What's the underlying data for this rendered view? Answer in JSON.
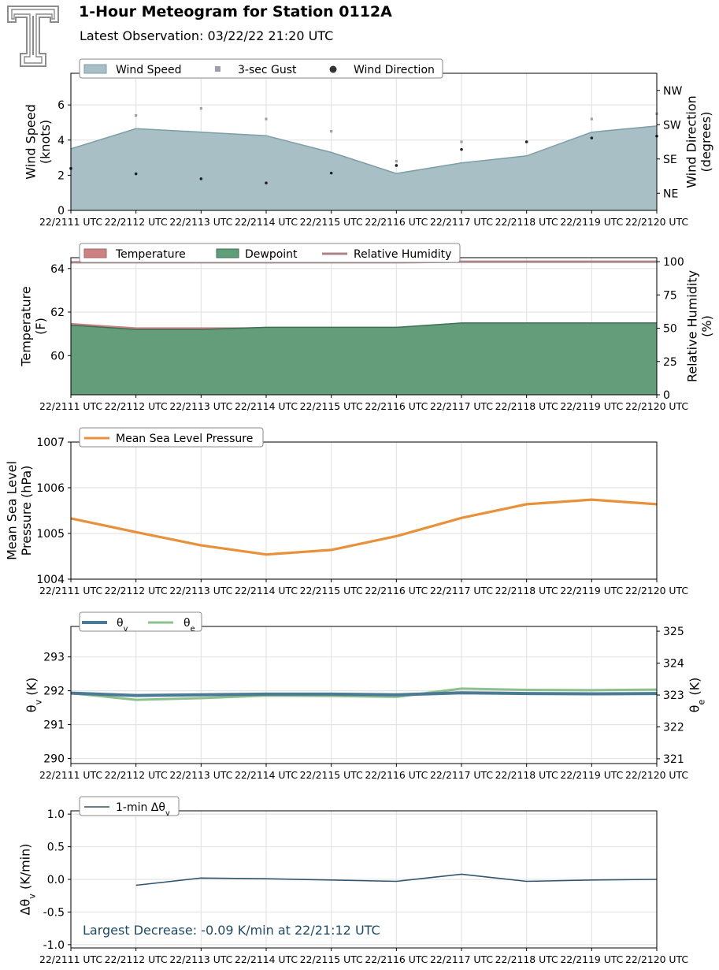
{
  "header": {
    "title": "1-Hour Meteogram for Station 0112A",
    "subtitle": "Latest Observation: 03/22/22 21:20 UTC"
  },
  "colors": {
    "wind_fill": "#a7bfc5",
    "wind_line": "#7d9ea6",
    "gust": "#9e9eb0",
    "direction": "#222222",
    "temperature": "#cd8282",
    "dewpoint": "#5e9e78",
    "dewpoint_line": "#3f6e53",
    "rh": "#a98589",
    "pressure": "#e8913a",
    "theta_v": "#4a7a96",
    "theta_e": "#8cc08c",
    "dtheta": "#2f566e",
    "annotation": "#1e4a6a"
  },
  "chart_data": [
    {
      "type": "area",
      "id": "wind",
      "x": [
        "22/2111 UTC",
        "22/2112 UTC",
        "22/2113 UTC",
        "22/2114 UTC",
        "22/2115 UTC",
        "22/2116 UTC",
        "22/2117 UTC",
        "22/2118 UTC",
        "22/2119 UTC",
        "22/2120 UTC"
      ],
      "ylabel": "Wind Speed\n(knots)",
      "ylabel2": "Wind Direction\n(degrees)",
      "ylim": [
        0,
        7.8
      ],
      "yticks": [
        0,
        2,
        4,
        6
      ],
      "ylim2": [
        0,
        360
      ],
      "y2ticks": [
        45,
        135,
        225,
        315
      ],
      "y2ticklabels": [
        "NE",
        "SE",
        "SW",
        "NW"
      ],
      "legend": [
        "Wind Speed",
        "3-sec Gust",
        "Wind Direction"
      ],
      "series": [
        {
          "name": "Wind Speed",
          "values": [
            3.5,
            4.65,
            4.45,
            4.25,
            3.3,
            2.1,
            2.7,
            3.1,
            4.45,
            4.8
          ]
        },
        {
          "name": "3-sec Gust",
          "values": [
            2.4,
            5.4,
            5.8,
            5.2,
            4.5,
            2.8,
            3.9,
            3.9,
            5.2,
            5.5
          ]
        },
        {
          "name": "Wind Direction",
          "values": [
            110,
            96,
            83,
            72,
            98,
            118,
            160,
            180,
            190,
            195
          ]
        }
      ]
    },
    {
      "type": "area",
      "id": "temp",
      "x": [
        "22/2111 UTC",
        "22/2112 UTC",
        "22/2113 UTC",
        "22/2114 UTC",
        "22/2115 UTC",
        "22/2116 UTC",
        "22/2117 UTC",
        "22/2118 UTC",
        "22/2119 UTC",
        "22/2120 UTC"
      ],
      "ylabel": "Temperature\n(F)",
      "ylabel2": "Relative Humidity\n(%)",
      "ylim": [
        58.2,
        64.5
      ],
      "yticks": [
        60,
        62,
        64
      ],
      "ylim2": [
        0,
        103
      ],
      "y2ticks": [
        0,
        25,
        50,
        75,
        100
      ],
      "legend": [
        "Temperature",
        "Dewpoint",
        "Relative Humidity"
      ],
      "series": [
        {
          "name": "Temperature",
          "values": [
            61.5,
            61.3,
            61.3,
            61.3,
            61.3,
            61.3,
            61.5,
            61.5,
            61.5,
            61.5
          ]
        },
        {
          "name": "Dewpoint",
          "values": [
            61.4,
            61.2,
            61.2,
            61.3,
            61.3,
            61.3,
            61.5,
            61.5,
            61.5,
            61.5
          ]
        },
        {
          "name": "Relative Humidity",
          "values": [
            99.5,
            99.5,
            99.5,
            99.5,
            99.5,
            99.5,
            100,
            100,
            100,
            100
          ]
        }
      ]
    },
    {
      "type": "line",
      "id": "pressure",
      "x": [
        "22/2111 UTC",
        "22/2112 UTC",
        "22/2113 UTC",
        "22/2114 UTC",
        "22/2115 UTC",
        "22/2116 UTC",
        "22/2117 UTC",
        "22/2118 UTC",
        "22/2119 UTC",
        "22/2120 UTC"
      ],
      "ylabel": "Mean Sea Level\nPressure (hPa)",
      "ylim": [
        1004,
        1007
      ],
      "yticks": [
        1004,
        1005,
        1006,
        1007
      ],
      "legend": [
        "Mean Sea Level Pressure"
      ],
      "series": [
        {
          "name": "Mean Sea Level Pressure",
          "values": [
            1005.33,
            1005.03,
            1004.74,
            1004.54,
            1004.64,
            1004.94,
            1005.34,
            1005.64,
            1005.74,
            1005.64
          ]
        }
      ]
    },
    {
      "type": "line",
      "id": "theta",
      "x": [
        "22/2111 UTC",
        "22/2112 UTC",
        "22/2113 UTC",
        "22/2114 UTC",
        "22/2115 UTC",
        "22/2116 UTC",
        "22/2117 UTC",
        "22/2118 UTC",
        "22/2119 UTC",
        "22/2120 UTC"
      ],
      "ylabel": "θv (K)",
      "ylabel2": "θe (K)",
      "ylim": [
        289.85,
        293.9
      ],
      "yticks": [
        290,
        291,
        292,
        293
      ],
      "ylim2": [
        320.85,
        325.15
      ],
      "y2ticks": [
        321,
        322,
        323,
        324,
        325
      ],
      "legend": [
        "θv",
        "θe"
      ],
      "series": [
        {
          "name": "θv",
          "values": [
            291.93,
            291.86,
            291.88,
            291.9,
            291.9,
            291.88,
            291.94,
            291.92,
            291.91,
            291.92
          ]
        },
        {
          "name": "θe",
          "values": [
            323.06,
            322.85,
            322.9,
            322.98,
            322.97,
            322.94,
            323.2,
            323.16,
            323.15,
            323.17
          ]
        }
      ]
    },
    {
      "type": "line",
      "id": "dtheta",
      "x": [
        "22/2111 UTC",
        "22/2112 UTC",
        "22/2113 UTC",
        "22/2114 UTC",
        "22/2115 UTC",
        "22/2116 UTC",
        "22/2117 UTC",
        "22/2118 UTC",
        "22/2119 UTC",
        "22/2120 UTC"
      ],
      "ylabel": "Δθv (K/min)",
      "ylim": [
        -1.05,
        1.05
      ],
      "yticks": [
        -1.0,
        -0.5,
        0.0,
        0.5,
        1.0
      ],
      "ytickformat": "0.0",
      "legend": [
        "1-min Δθv"
      ],
      "annotation": "Largest Decrease: -0.09 K/min at 22/21:12 UTC",
      "series": [
        {
          "name": "1-min Δθv",
          "values": [
            null,
            -0.09,
            0.02,
            0.01,
            -0.01,
            -0.03,
            0.08,
            -0.03,
            -0.01,
            0.0
          ]
        }
      ]
    }
  ]
}
